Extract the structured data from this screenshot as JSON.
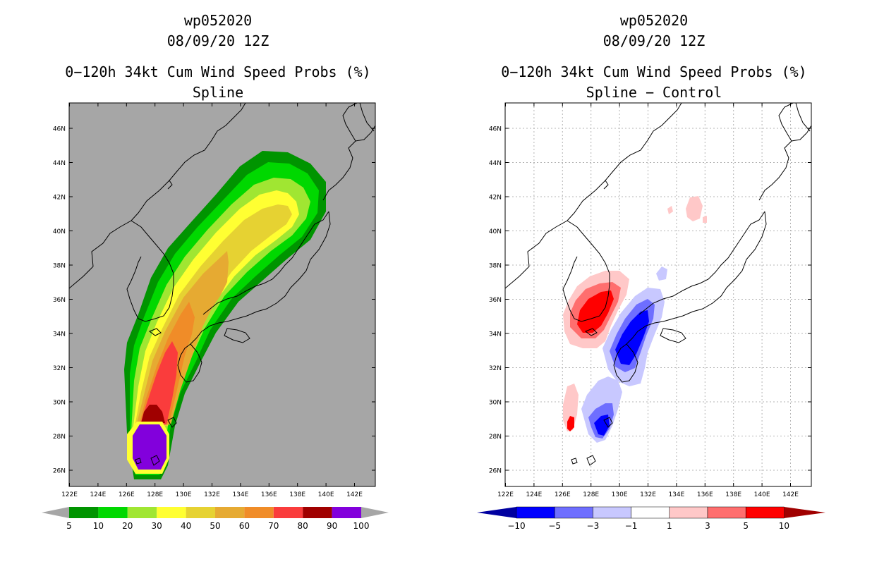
{
  "left_panel": {
    "storm_id": "wp052020",
    "datetime": "08/09/20 12Z",
    "product_title": "0−120h 34kt Cum Wind Speed Probs (%)",
    "subtitle": "Spline",
    "lat_labels": [
      "46N",
      "44N",
      "42N",
      "40N",
      "38N",
      "36N",
      "34N",
      "32N",
      "30N",
      "28N",
      "26N"
    ],
    "lon_labels": [
      "122E",
      "124E",
      "126E",
      "128E",
      "130E",
      "132E",
      "134E",
      "136E",
      "138E",
      "140E",
      "142E"
    ],
    "legend": {
      "labels": [
        "5",
        "10",
        "20",
        "30",
        "40",
        "50",
        "60",
        "70",
        "80",
        "90",
        "100"
      ],
      "colors": [
        "#009400",
        "#00d800",
        "#a0e632",
        "#ffff32",
        "#e6d232",
        "#e6aa32",
        "#f08c28",
        "#fa3c3c",
        "#a00000",
        "#8200dc"
      ]
    }
  },
  "right_panel": {
    "storm_id": "wp052020",
    "datetime": "08/09/20 12Z",
    "product_title": "0−120h 34kt Cum Wind Speed Probs (%)",
    "subtitle": "Spline − Control",
    "lat_labels": [
      "46N",
      "44N",
      "42N",
      "40N",
      "38N",
      "36N",
      "34N",
      "32N",
      "30N",
      "28N",
      "26N"
    ],
    "lon_labels": [
      "122E",
      "124E",
      "126E",
      "128E",
      "130E",
      "132E",
      "134E",
      "136E",
      "138E",
      "140E",
      "142E"
    ],
    "legend": {
      "labels": [
        "−10",
        "−5",
        "−3",
        "−1",
        "1",
        "3",
        "5",
        "10"
      ],
      "colors": [
        "#0000a0",
        "#0000ff",
        "#6e6eff",
        "#c8c8ff",
        "#ffffff",
        "#ffc8c8",
        "#ff6e6e",
        "#ff0000",
        "#a00000"
      ]
    }
  }
}
